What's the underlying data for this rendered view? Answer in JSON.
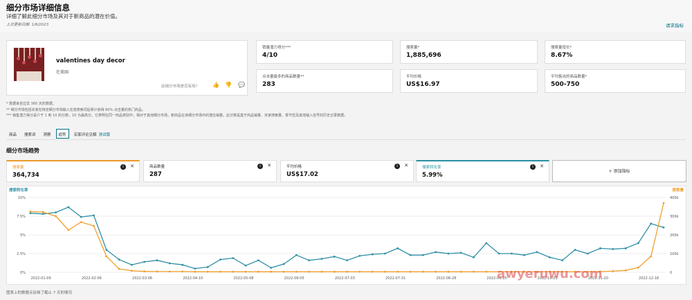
{
  "header": {
    "title": "细分市场详细信息",
    "subtitle": "详细了解此细分市场及其对于新商品的潜在价值。",
    "last_updated": "上次更新日期: 1/6/2023",
    "request_link": "请求指标"
  },
  "product": {
    "name": "valentines day decor",
    "region": "在美国",
    "helpful_prompt": "此细分市场是否有用?"
  },
  "metrics": [
    {
      "label": "销量潜力得分***",
      "value": "4/10"
    },
    {
      "label": "搜索量*",
      "value": "1,885,696"
    },
    {
      "label": "搜索量增长*",
      "value": "8.67%"
    },
    {
      "label": "点击量最多的商品数量**",
      "value": "283"
    },
    {
      "label": "平均价格",
      "value": "US$16.97"
    },
    {
      "label": "平均售出的商品数量*",
      "value": "500-750"
    }
  ],
  "notes": [
    "* 数据来自过去 360 天的数据。",
    "** 细分市场包括买家在特定细分市场输入任意搜索词后累计获得 80% 点击量的热门商品。",
    "*** 销售潜力得分是介于 1 到 10 的分数，10 为最高分。它表明在同一商品类别中，相对于其他细分市场，新商品在该细分市场中的潜在销量。此分数是基于商品销量、买家搜索量、季节性及其他输入信号的历史记录数据。"
  ],
  "tabs": [
    {
      "label": "商品"
    },
    {
      "label": "搜索词"
    },
    {
      "label": "洞察"
    },
    {
      "label": "趋势"
    },
    {
      "label": "买家评论见解",
      "badge": "测试版"
    }
  ],
  "active_tab": "趋势",
  "trends": {
    "title": "细分市场趋势",
    "kpis": [
      {
        "label": "搜索量",
        "value": "364,734",
        "color": "#ec9a29"
      },
      {
        "label": "商品数量",
        "value": "287",
        "color": ""
      },
      {
        "label": "平均价格",
        "value": "US$17.02",
        "color": ""
      },
      {
        "label": "搜索转化率",
        "value": "5.99%",
        "color": "#2a8fa3"
      }
    ],
    "add_metric": "+ 添加指标",
    "note": "图表上的数据点反映了截止 7 天的情况"
  },
  "colors": {
    "search_volume": "#f0a030",
    "conversion": "#2f8fa5",
    "accent": "#007185"
  },
  "watermark": "awyeruwu.com",
  "chart_data": {
    "type": "line",
    "x_labels": [
      "2022-01-09",
      "2022-02-06",
      "2022-03-06",
      "2022-04-10",
      "2022-05-08",
      "2022-06-05",
      "2022-07-03",
      "2022-07-31",
      "2022-08-28",
      "2022-09-25",
      "2022-10-23",
      "2022-11-20",
      "2022-12-18"
    ],
    "left_axis": {
      "label": "搜索转化率",
      "ticks": [
        "10%",
        "7.5%",
        "5%",
        "2.5%",
        "0%"
      ],
      "range": [
        0,
        10
      ]
    },
    "right_axis": {
      "label": "搜索量",
      "ticks": [
        "400k",
        "300k",
        "200k",
        "100k",
        "0"
      ],
      "range": [
        0,
        400000
      ]
    },
    "series": [
      {
        "name": "搜索转化率",
        "axis": "left",
        "color": "#2f8fa5",
        "values": [
          7.9,
          7.8,
          8.0,
          8.7,
          7.4,
          7.6,
          3.0,
          1.7,
          1.0,
          1.4,
          1.6,
          1.2,
          1.0,
          0.5,
          0.7,
          1.7,
          1.9,
          0.9,
          1.6,
          0.6,
          1.1,
          2.3,
          1.6,
          1.8,
          2.1,
          1.6,
          2.2,
          2.4,
          2.5,
          3.2,
          2.3,
          2.3,
          2.7,
          2.5,
          2.6,
          2.0,
          3.9,
          2.5,
          2.5,
          2.3,
          2.7,
          2.0,
          1.6,
          3.0,
          2.5,
          3.2,
          3.1,
          3.2,
          3.9,
          6.5,
          6.0
        ]
      },
      {
        "name": "搜索量",
        "axis": "right",
        "color": "#f0a030",
        "values": [
          325000,
          322000,
          300000,
          226000,
          268000,
          248000,
          85000,
          18000,
          8000,
          5000,
          4000,
          4000,
          4000,
          3000,
          3000,
          3000,
          3000,
          3000,
          3000,
          3000,
          3000,
          3000,
          3000,
          3000,
          3000,
          3000,
          3000,
          3000,
          3000,
          3000,
          3000,
          3000,
          3000,
          3000,
          3000,
          3000,
          3000,
          3000,
          3000,
          3000,
          3000,
          3000,
          3000,
          3000,
          3000,
          4000,
          6000,
          10000,
          25000,
          85000,
          370000
        ]
      }
    ]
  }
}
